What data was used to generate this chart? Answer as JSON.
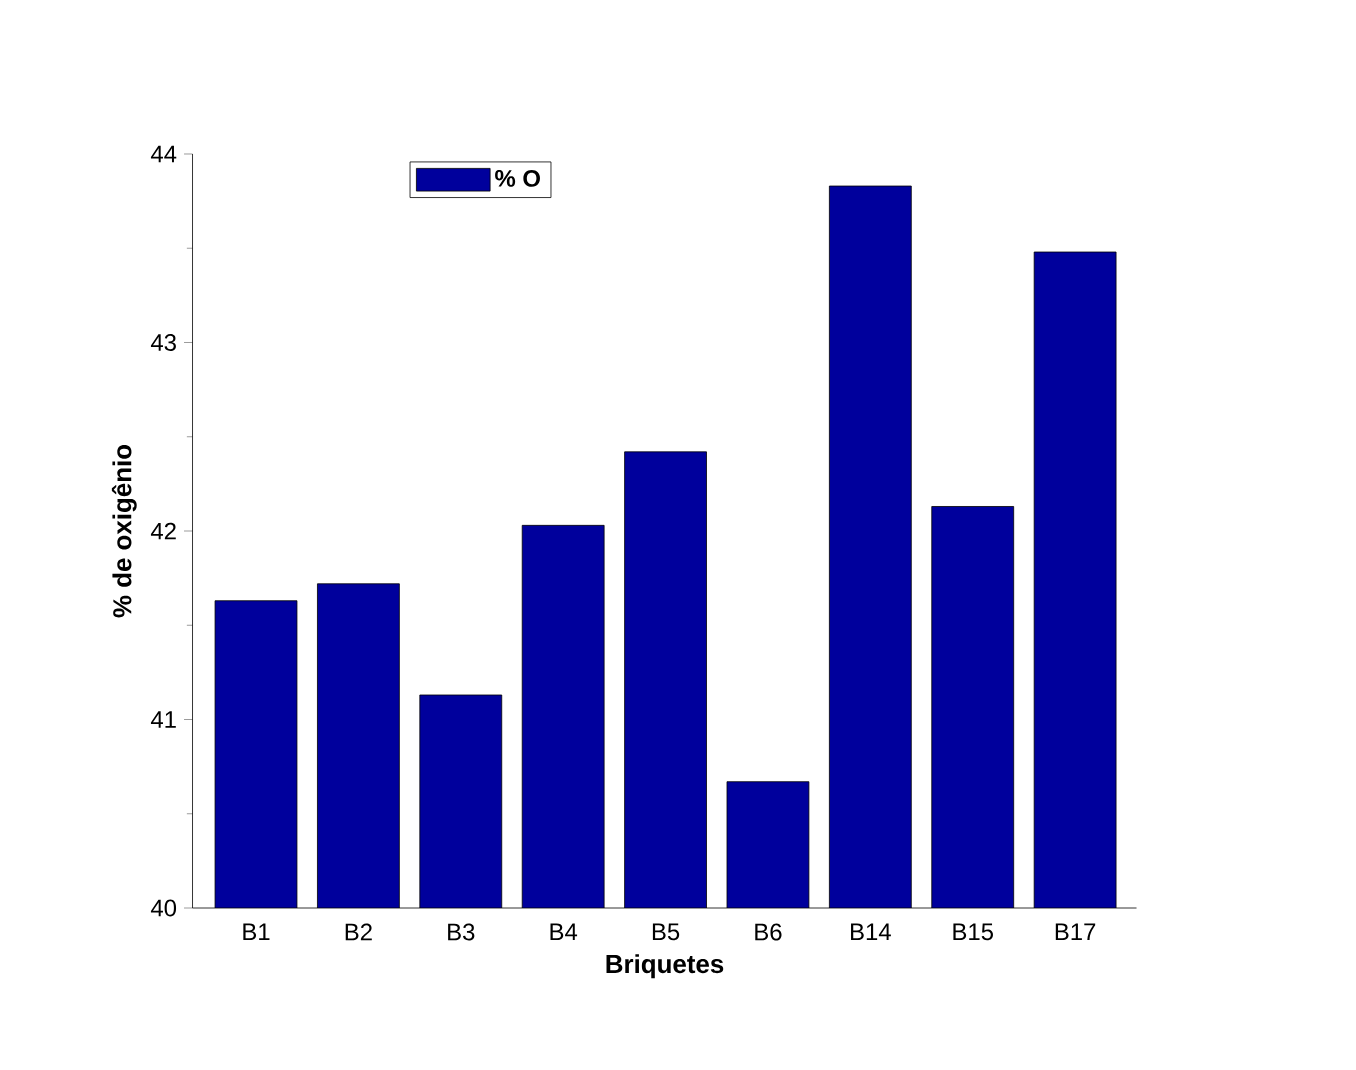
{
  "chart_data": {
    "type": "bar",
    "xlabel": "Briquetes",
    "ylabel": "% de oxigênio",
    "categories": [
      "B1",
      "B2",
      "B3",
      "B4",
      "B5",
      "B6",
      "B14",
      "B15",
      "B17"
    ],
    "series": [
      {
        "name": "% O",
        "color": "#00009c",
        "values": [
          41.63,
          41.72,
          41.13,
          42.03,
          42.42,
          40.67,
          43.83,
          42.13,
          43.48
        ]
      }
    ],
    "ylim": [
      40,
      44
    ],
    "yticks": [
      40,
      41,
      42,
      43,
      44
    ],
    "legend": "top left",
    "grid": false
  }
}
